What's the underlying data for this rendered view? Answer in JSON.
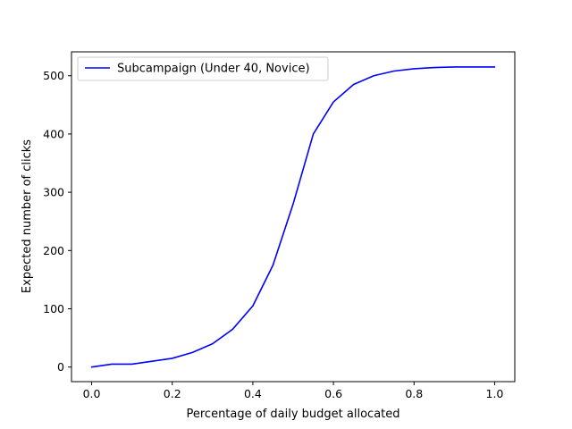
{
  "chart_data": {
    "type": "line",
    "xlabel": "Percentage of daily budget allocated",
    "ylabel": "Expected number of clicks",
    "xlim": [
      -0.05,
      1.05
    ],
    "ylim": [
      -25,
      541
    ],
    "x_ticks": [
      0.0,
      0.2,
      0.4,
      0.6,
      0.8,
      1.0
    ],
    "x_tick_labels": [
      "0.0",
      "0.2",
      "0.4",
      "0.6",
      "0.8",
      "1.0"
    ],
    "y_ticks": [
      0,
      100,
      200,
      300,
      400,
      500
    ],
    "y_tick_labels": [
      "0",
      "100",
      "200",
      "300",
      "400",
      "500"
    ],
    "grid": false,
    "legend_position": "top-left",
    "series": [
      {
        "name": "Subcampaign (Under 40, Novice)",
        "color": "#0000ff",
        "x": [
          0.0,
          0.05,
          0.1,
          0.15,
          0.2,
          0.25,
          0.3,
          0.35,
          0.4,
          0.45,
          0.5,
          0.55,
          0.6,
          0.65,
          0.7,
          0.75,
          0.8,
          0.85,
          0.9,
          0.95,
          1.0
        ],
        "y": [
          0,
          5,
          5,
          10,
          15,
          25,
          40,
          65,
          105,
          175,
          280,
          400,
          455,
          485,
          500,
          508,
          512,
          514,
          515,
          515,
          515
        ]
      }
    ]
  }
}
